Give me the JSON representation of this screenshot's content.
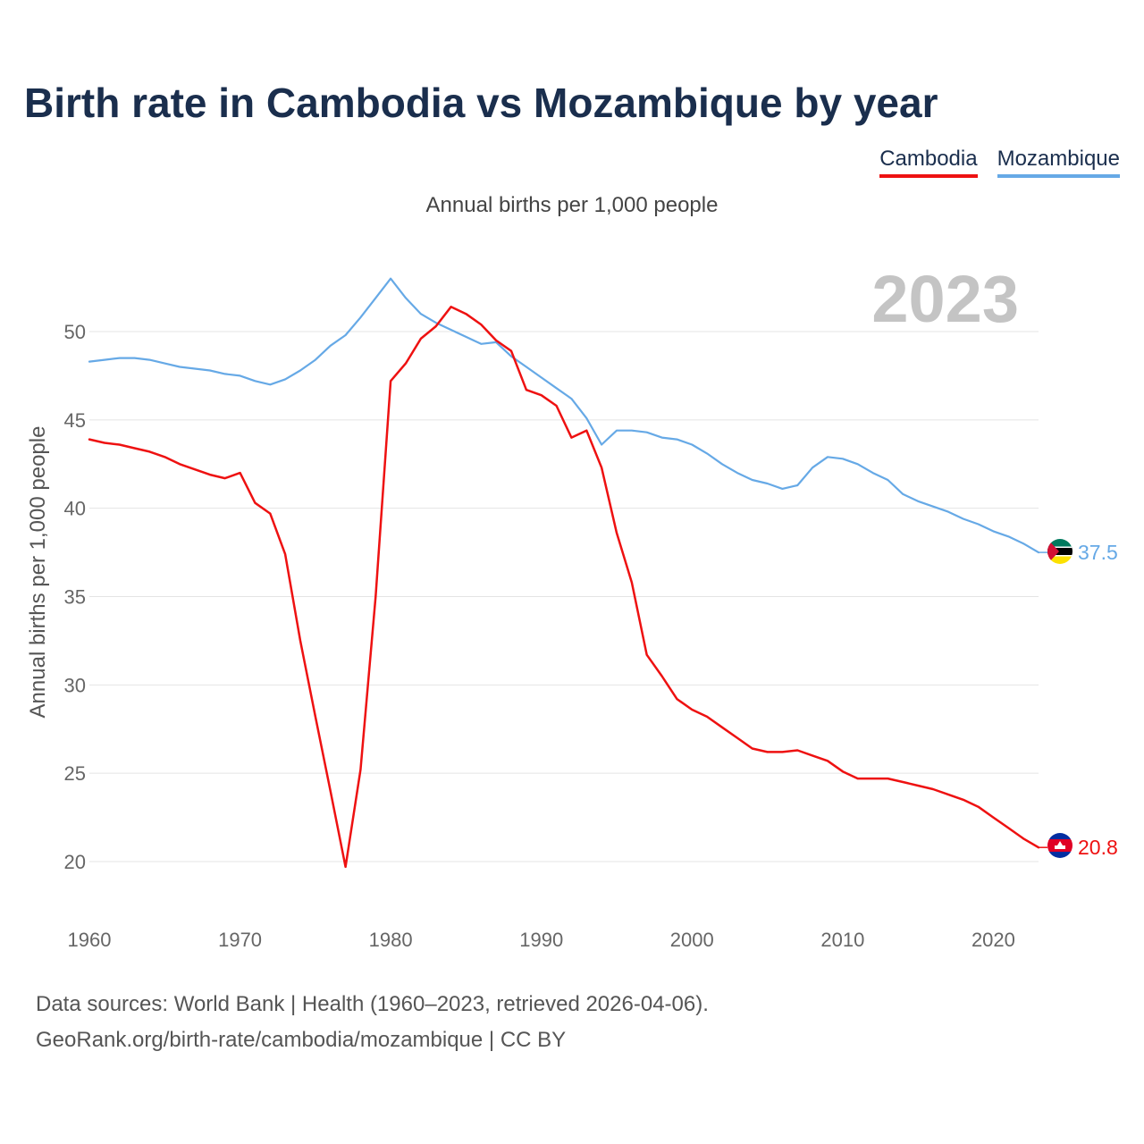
{
  "title": "Birth rate in Cambodia vs Mozambique by year",
  "subtitle": "Annual births per 1,000 people",
  "year_watermark": "2023",
  "footer": {
    "line1": "Data sources: World Bank | Health (1960–2023, retrieved 2026-04-06).",
    "line2": "GeoRank.org/birth-rate/cambodia/mozambique | CC BY"
  },
  "colors": {
    "cambodia": "#ee1111",
    "mozambique": "#66a9e6"
  },
  "chart_data": {
    "type": "line",
    "title": "Birth rate in Cambodia vs Mozambique by year",
    "xlabel": "",
    "ylabel": "Annual births per 1,000 people",
    "xlim": [
      1960,
      2023
    ],
    "ylim": [
      17,
      55
    ],
    "x_ticks": [
      1960,
      1970,
      1980,
      1990,
      2000,
      2010,
      2020
    ],
    "y_ticks": [
      20,
      25,
      30,
      35,
      40,
      45,
      50
    ],
    "legend_position": "top-right",
    "x": [
      1960,
      1961,
      1962,
      1963,
      1964,
      1965,
      1966,
      1967,
      1968,
      1969,
      1970,
      1971,
      1972,
      1973,
      1974,
      1975,
      1976,
      1977,
      1978,
      1979,
      1980,
      1981,
      1982,
      1983,
      1984,
      1985,
      1986,
      1987,
      1988,
      1989,
      1990,
      1991,
      1992,
      1993,
      1994,
      1995,
      1996,
      1997,
      1998,
      1999,
      2000,
      2001,
      2002,
      2003,
      2004,
      2005,
      2006,
      2007,
      2008,
      2009,
      2010,
      2011,
      2012,
      2013,
      2014,
      2015,
      2016,
      2017,
      2018,
      2019,
      2020,
      2021,
      2022,
      2023
    ],
    "series": [
      {
        "name": "Cambodia",
        "end_label": "20.8",
        "values": [
          43.9,
          43.7,
          43.6,
          43.4,
          43.2,
          42.9,
          42.5,
          42.2,
          41.9,
          41.7,
          42.0,
          40.3,
          39.7,
          37.4,
          32.5,
          28.2,
          24.0,
          19.7,
          25.2,
          35.0,
          47.2,
          48.2,
          49.6,
          50.3,
          51.4,
          51.0,
          50.4,
          49.5,
          48.9,
          46.7,
          46.4,
          45.8,
          44.0,
          44.4,
          42.3,
          38.6,
          35.8,
          31.7,
          30.5,
          29.2,
          28.6,
          28.2,
          27.6,
          27.0,
          26.4,
          26.2,
          26.2,
          26.3,
          26.0,
          25.7,
          25.1,
          24.7,
          24.7,
          24.7,
          24.5,
          24.3,
          24.1,
          23.8,
          23.5,
          23.1,
          22.5,
          21.9,
          21.3,
          20.8
        ]
      },
      {
        "name": "Mozambique",
        "end_label": "37.5",
        "values": [
          48.3,
          48.4,
          48.5,
          48.5,
          48.4,
          48.2,
          48.0,
          47.9,
          47.8,
          47.6,
          47.5,
          47.2,
          47.0,
          47.3,
          47.8,
          48.4,
          49.2,
          49.8,
          50.8,
          51.9,
          53.0,
          51.9,
          51.0,
          50.5,
          50.1,
          49.7,
          49.3,
          49.4,
          48.6,
          48.0,
          47.4,
          46.8,
          46.2,
          45.1,
          43.6,
          44.4,
          44.4,
          44.3,
          44.0,
          43.9,
          43.6,
          43.1,
          42.5,
          42.0,
          41.6,
          41.4,
          41.1,
          41.3,
          42.3,
          42.9,
          42.8,
          42.5,
          42.0,
          41.6,
          40.8,
          40.4,
          40.1,
          39.8,
          39.4,
          39.1,
          38.7,
          38.4,
          38.0,
          37.5
        ]
      }
    ]
  }
}
